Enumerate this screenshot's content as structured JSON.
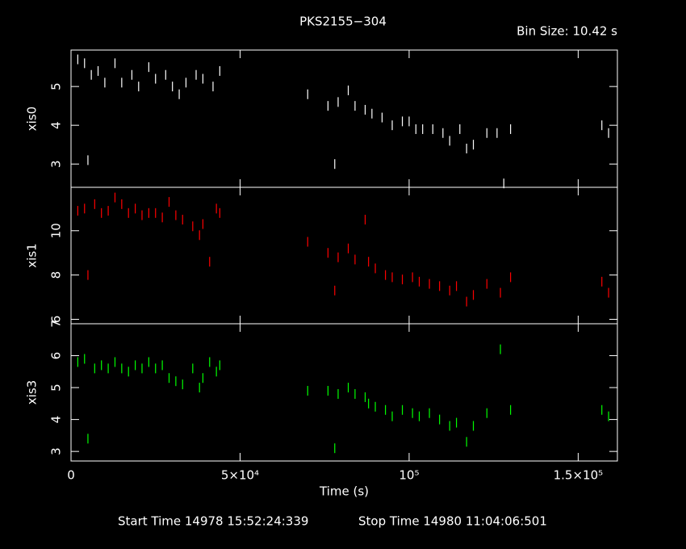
{
  "header": {
    "title": "PKS2155−304",
    "subtitle": "Bin Size: 10.42 s"
  },
  "footer": {
    "start": "Start Time 14978 15:52:24:339",
    "stop": "Stop Time 14980 11:04:06:501"
  },
  "chart_data": [
    {
      "type": "scatter",
      "ylabel": "xis0",
      "color": "#ffffff",
      "x": [
        2000,
        4000,
        5000,
        6000,
        8000,
        10000,
        13000,
        15000,
        18000,
        20000,
        23000,
        25000,
        28000,
        30000,
        32000,
        34000,
        37000,
        39000,
        42000,
        44000,
        70000,
        76000,
        78000,
        79000,
        82000,
        84000,
        87000,
        89000,
        92000,
        95000,
        98000,
        100000,
        102000,
        104000,
        107000,
        110000,
        112000,
        115000,
        117000,
        119000,
        123000,
        126000,
        128000,
        130000,
        157000,
        159000
      ],
      "y": [
        5.7,
        5.6,
        3.1,
        5.3,
        5.4,
        5.1,
        5.6,
        5.1,
        5.3,
        5.0,
        5.5,
        5.2,
        5.3,
        5.0,
        4.8,
        5.1,
        5.3,
        5.2,
        5.0,
        5.4,
        4.8,
        4.5,
        3.0,
        4.6,
        4.9,
        4.5,
        4.4,
        4.3,
        4.2,
        4.0,
        4.1,
        4.1,
        3.9,
        3.9,
        3.9,
        3.8,
        3.6,
        3.9,
        3.4,
        3.5,
        3.8,
        3.8,
        2.5,
        3.9,
        4.0,
        3.8
      ],
      "xlim": [
        0,
        161600
      ],
      "ylim": [
        2.4,
        5.94
      ],
      "xticks": [
        0,
        50000,
        100000,
        150000
      ],
      "yticks": [
        3,
        4,
        5
      ]
    },
    {
      "type": "scatter",
      "ylabel": "xis1",
      "color": "#ff0000",
      "x": [
        2000,
        4000,
        5000,
        7000,
        9000,
        11000,
        13000,
        15000,
        17000,
        19000,
        21000,
        23000,
        25000,
        27000,
        29000,
        31000,
        33000,
        36000,
        38000,
        39000,
        41000,
        43000,
        44000,
        70000,
        76000,
        78000,
        79000,
        82000,
        84000,
        87000,
        88000,
        90000,
        93000,
        95000,
        98000,
        101000,
        103000,
        106000,
        109000,
        112000,
        114000,
        117000,
        119000,
        123000,
        127000,
        130000,
        157000,
        159000
      ],
      "y": [
        10.9,
        11.0,
        8.0,
        11.2,
        10.8,
        10.9,
        11.5,
        11.2,
        10.8,
        11.0,
        10.7,
        10.8,
        10.8,
        10.6,
        11.3,
        10.7,
        10.5,
        10.2,
        9.8,
        10.3,
        8.6,
        11.0,
        10.8,
        9.5,
        9.0,
        7.3,
        8.8,
        9.2,
        8.7,
        10.5,
        8.6,
        8.3,
        8.0,
        7.9,
        7.8,
        7.9,
        7.7,
        7.6,
        7.5,
        7.3,
        7.5,
        6.8,
        7.1,
        7.6,
        7.2,
        7.9,
        7.7,
        7.2
      ],
      "xlim": [
        0,
        161600
      ],
      "ylim": [
        5.8,
        11.96
      ],
      "xticks": [
        0,
        50000,
        100000,
        150000
      ],
      "yticks": [
        6,
        8,
        10
      ]
    },
    {
      "type": "scatter",
      "ylabel": "xis3",
      "color": "#00ff00",
      "xlabel": "Time (s)",
      "x": [
        2000,
        4000,
        5000,
        7000,
        9000,
        11000,
        13000,
        15000,
        17000,
        19000,
        21000,
        23000,
        25000,
        27000,
        29000,
        31000,
        33000,
        36000,
        38000,
        39000,
        41000,
        43000,
        44000,
        70000,
        76000,
        78000,
        79000,
        82000,
        84000,
        87000,
        88000,
        90000,
        93000,
        95000,
        98000,
        101000,
        103000,
        106000,
        109000,
        112000,
        114000,
        117000,
        119000,
        123000,
        127000,
        130000,
        157000,
        159000
      ],
      "y": [
        5.8,
        5.9,
        3.4,
        5.6,
        5.7,
        5.6,
        5.8,
        5.6,
        5.5,
        5.7,
        5.6,
        5.8,
        5.6,
        5.7,
        5.3,
        5.2,
        5.1,
        5.6,
        5.0,
        5.3,
        5.8,
        5.5,
        5.7,
        4.9,
        4.9,
        3.1,
        4.8,
        5.0,
        4.8,
        4.7,
        4.5,
        4.4,
        4.3,
        4.1,
        4.3,
        4.2,
        4.1,
        4.2,
        4.0,
        3.8,
        3.9,
        3.3,
        3.8,
        4.2,
        6.2,
        4.3,
        4.3,
        4.1
      ],
      "xlim": [
        0,
        161600
      ],
      "ylim": [
        2.7,
        7.0
      ],
      "xticks": [
        0,
        {
          "value": 50000,
          "label": "5×10⁴"
        },
        {
          "value": 100000,
          "label": "10⁵"
        },
        {
          "value": 150000,
          "label": "1.5×10⁵"
        }
      ],
      "yticks": [
        3,
        4,
        5,
        6,
        7
      ]
    }
  ]
}
